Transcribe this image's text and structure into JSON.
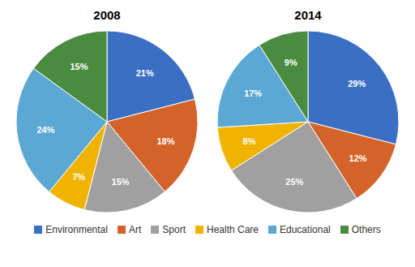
{
  "chart_data": [
    {
      "type": "pie",
      "title": "2008",
      "categories": [
        "Environmental",
        "Art",
        "Sport",
        "Health Care",
        "Educational",
        "Others"
      ],
      "values": [
        21,
        18,
        15,
        7,
        24,
        15
      ],
      "value_labels": [
        "21%",
        "18%",
        "15%",
        "7%",
        "24%",
        "15%"
      ],
      "colors": [
        "#3a6fc4",
        "#d4632a",
        "#a0a0a0",
        "#f0b400",
        "#5ba8d4",
        "#4a8c3f"
      ],
      "data_labels": true,
      "legend": "bottom"
    },
    {
      "type": "pie",
      "title": "2014",
      "categories": [
        "Environmental",
        "Art",
        "Sport",
        "Health Care",
        "Educational",
        "Others"
      ],
      "values": [
        29,
        12,
        25,
        8,
        17,
        9
      ],
      "value_labels": [
        "29%",
        "12%",
        "25%",
        "8%",
        "17%",
        "9%"
      ],
      "colors": [
        "#3a6fc4",
        "#d4632a",
        "#a0a0a0",
        "#f0b400",
        "#5ba8d4",
        "#4a8c3f"
      ],
      "data_labels": true
    }
  ]
}
